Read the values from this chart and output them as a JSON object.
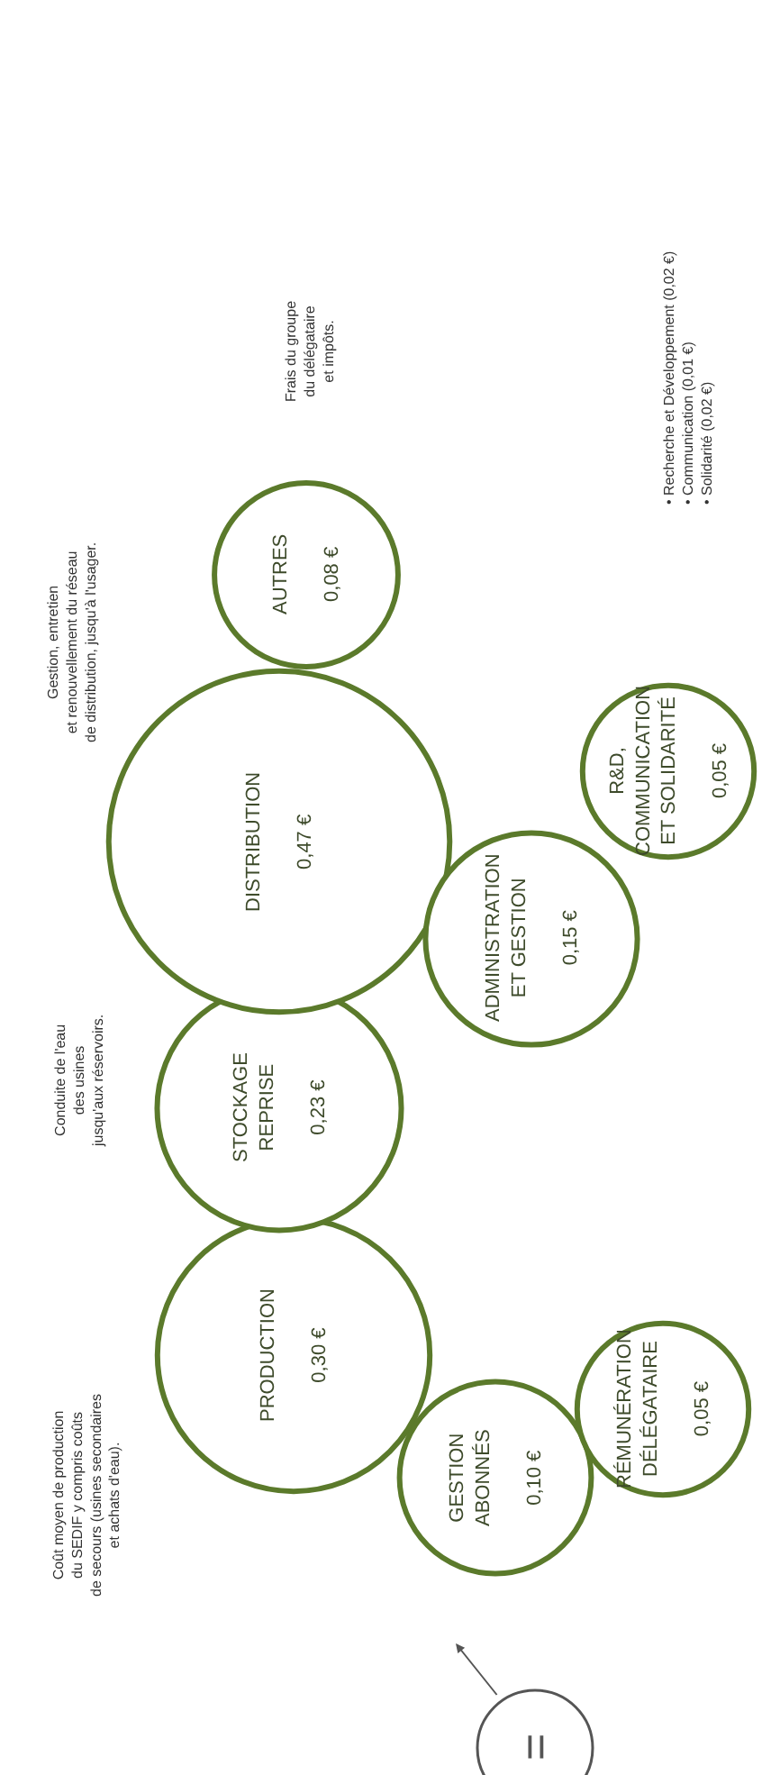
{
  "chart_data": {
    "type": "other",
    "categories": [
      "PRODUCTION",
      "STOCKAGE\nREPRISE",
      "DISTRIBUTION",
      "AUTRES",
      "GESTION\nABONNÉS",
      "RÉMUNÉRATION\nDÉLÉGATAIRE",
      "ADMINISTRATION\nET GESTION",
      "R&D,\nCOMMUNICATION\nET SOLIDARITÉ"
    ],
    "values": [
      0.3,
      0.23,
      0.47,
      0.08,
      0.1,
      0.05,
      0.15,
      0.05
    ],
    "value_labels": [
      "0,30 €",
      "0,23 €",
      "0,47 €",
      "0,08 €",
      "0,10 €",
      "0,05 €",
      "0,15 €",
      "0,05 €"
    ],
    "color": "#5b7a2b",
    "annotations": [
      "Coût moyen de production\ndu SEDIF y compris coûts\nde secours (usines secondaires\net achats d'eau).",
      "Conduite de l'eau\ndes usines\njusqu'aux réservoirs.",
      "Gestion, entretien\net renouvellement du réseau\nde distribution, jusqu'à l'usager.",
      "Frais du groupe\ndu délégataire\net impôts.",
      "• Recherche et Développement (0,02 €)\n• Communication (0,01 €)\n• Solidarité (0,02 €)",
      "="
    ]
  }
}
